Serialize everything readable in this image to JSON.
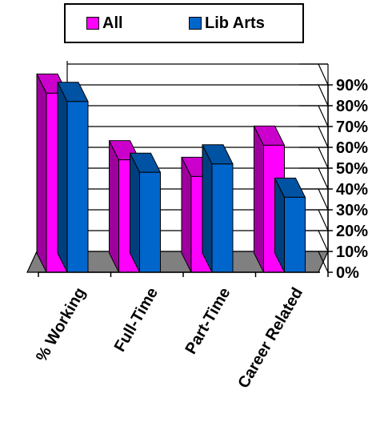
{
  "chart_data": {
    "type": "bar",
    "categories": [
      "% Working",
      "Full-Time",
      "Part-Time",
      "Career Related"
    ],
    "series": [
      {
        "name": "All",
        "color": "#FF00FF",
        "values": [
          86,
          54,
          46,
          61
        ]
      },
      {
        "name": "Lib Arts",
        "color": "#0066CC",
        "values": [
          82,
          48,
          52,
          36
        ]
      }
    ],
    "ylim": [
      0,
      90
    ],
    "y_ticks": [
      "0%",
      "10%",
      "20%",
      "30%",
      "40%",
      "50%",
      "60%",
      "70%",
      "80%",
      "90%"
    ],
    "grid": true,
    "legend_position": "top",
    "bar_style": "3d"
  }
}
